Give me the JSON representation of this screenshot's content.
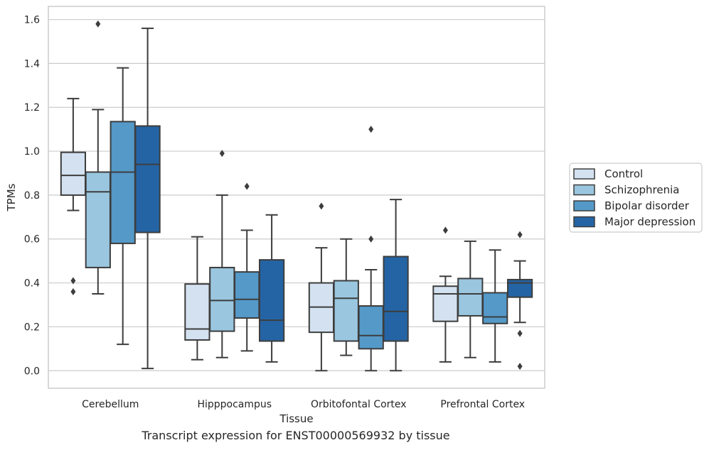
{
  "caption": "Transcript expression for ENST00000569932 by tissue",
  "chart_data": {
    "type": "boxplot",
    "title": "",
    "xlabel": "Tissue",
    "ylabel": "TPMs",
    "ylim": [
      -0.08,
      1.66
    ],
    "yticks": [
      0.0,
      0.2,
      0.4,
      0.6,
      0.8,
      1.0,
      1.2,
      1.4,
      1.6
    ],
    "ytick_labels": [
      "0.0",
      "0.2",
      "0.4",
      "0.6",
      "0.8",
      "1.0",
      "1.2",
      "1.4",
      "1.6"
    ],
    "grid": true,
    "legend_position": "right",
    "categories": [
      "Cerebellum",
      "Hipppocampus",
      "Orbitofontal Cortex",
      "Prefrontal Cortex"
    ],
    "series": [
      {
        "name": "Control",
        "color": "#d3e1f0",
        "boxes": [
          {
            "whislo": 0.73,
            "q1": 0.8,
            "med": 0.89,
            "q3": 0.995,
            "whishi": 1.24,
            "fliers": [
              0.41,
              0.36
            ]
          },
          {
            "whislo": 0.05,
            "q1": 0.14,
            "med": 0.19,
            "q3": 0.395,
            "whishi": 0.61,
            "fliers": []
          },
          {
            "whislo": 0.0,
            "q1": 0.175,
            "med": 0.29,
            "q3": 0.4,
            "whishi": 0.56,
            "fliers": [
              0.75
            ]
          },
          {
            "whislo": 0.04,
            "q1": 0.225,
            "med": 0.35,
            "q3": 0.385,
            "whishi": 0.43,
            "fliers": [
              0.64
            ]
          }
        ]
      },
      {
        "name": "Schizophrenia",
        "color": "#9ac6df",
        "boxes": [
          {
            "whislo": 0.35,
            "q1": 0.47,
            "med": 0.815,
            "q3": 0.905,
            "whishi": 1.19,
            "fliers": [
              1.58
            ]
          },
          {
            "whislo": 0.06,
            "q1": 0.18,
            "med": 0.32,
            "q3": 0.47,
            "whishi": 0.8,
            "fliers": [
              0.99
            ]
          },
          {
            "whislo": 0.07,
            "q1": 0.135,
            "med": 0.33,
            "q3": 0.41,
            "whishi": 0.6,
            "fliers": []
          },
          {
            "whislo": 0.06,
            "q1": 0.25,
            "med": 0.35,
            "q3": 0.42,
            "whishi": 0.59,
            "fliers": []
          }
        ]
      },
      {
        "name": "Bipolar disorder",
        "color": "#5499c8",
        "boxes": [
          {
            "whislo": 0.12,
            "q1": 0.58,
            "med": 0.905,
            "q3": 1.135,
            "whishi": 1.38,
            "fliers": []
          },
          {
            "whislo": 0.09,
            "q1": 0.24,
            "med": 0.325,
            "q3": 0.45,
            "whishi": 0.64,
            "fliers": [
              0.84
            ]
          },
          {
            "whislo": 0.0,
            "q1": 0.1,
            "med": 0.16,
            "q3": 0.295,
            "whishi": 0.46,
            "fliers": [
              1.1,
              0.6
            ]
          },
          {
            "whislo": 0.04,
            "q1": 0.215,
            "med": 0.245,
            "q3": 0.355,
            "whishi": 0.55,
            "fliers": []
          }
        ]
      },
      {
        "name": "Major depression",
        "color": "#2464a4",
        "boxes": [
          {
            "whislo": 0.01,
            "q1": 0.63,
            "med": 0.94,
            "q3": 1.115,
            "whishi": 1.56,
            "fliers": []
          },
          {
            "whislo": 0.04,
            "q1": 0.135,
            "med": 0.23,
            "q3": 0.505,
            "whishi": 0.71,
            "fliers": []
          },
          {
            "whislo": 0.0,
            "q1": 0.135,
            "med": 0.27,
            "q3": 0.52,
            "whishi": 0.78,
            "fliers": []
          },
          {
            "whislo": 0.22,
            "q1": 0.335,
            "med": 0.4,
            "q3": 0.415,
            "whishi": 0.5,
            "fliers": [
              0.62,
              0.17,
              0.02
            ]
          }
        ]
      }
    ]
  }
}
